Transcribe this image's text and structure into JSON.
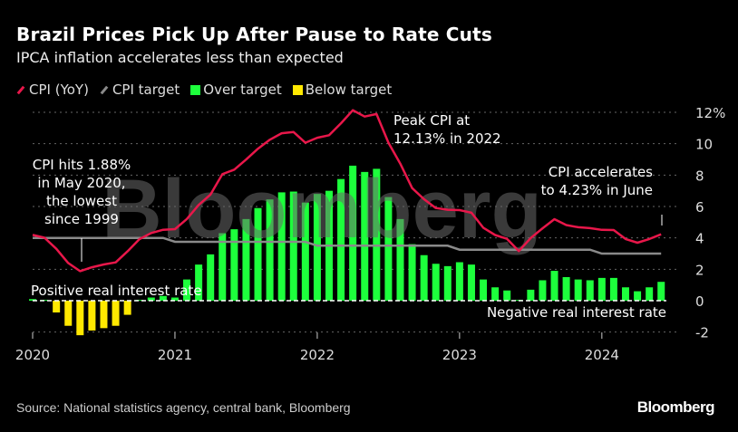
{
  "title": "Brazil Prices Pick Up After Pause to Rate Cuts",
  "subtitle": "IPCA inflation accelerates less than expected",
  "legend": [
    {
      "label": "CPI (YoY)",
      "type": "line",
      "color": "#e8174a"
    },
    {
      "label": "CPI target",
      "type": "line",
      "color": "#8a8a8a"
    },
    {
      "label": "Over target",
      "type": "box",
      "color": "#1dff3c"
    },
    {
      "label": "Below target",
      "type": "box",
      "color": "#ffe800"
    }
  ],
  "source": "Source: National statistics agency, central bank, Bloomberg",
  "logo": "Bloomberg",
  "watermark": "Bloomberg",
  "annotations": {
    "low": [
      "CPI hits 1.88%",
      "in May 2020,",
      "the lowest",
      "since 1999"
    ],
    "peak": [
      "Peak CPI at",
      "12.13% in 2022"
    ],
    "june": [
      "CPI accelerates",
      "to 4.23% in June"
    ],
    "positive": "Positive real interest rate",
    "negative": "Negative real interest rate"
  },
  "chart_data": {
    "type": "bar+line",
    "title": "Brazil Prices Pick Up After Pause to Rate Cuts",
    "start": "2020-01",
    "frequency": "monthly",
    "x_ticks": [
      "2020",
      "2021",
      "2022",
      "2023",
      "2024"
    ],
    "y_ticks": [
      "-2",
      "0",
      "2",
      "4",
      "6",
      "8",
      "10",
      "12%"
    ],
    "ylim": [
      -2,
      12
    ],
    "grid": true,
    "colors": {
      "cpi": "#e8174a",
      "target": "#8a8a8a",
      "over": "#1dff3c",
      "below": "#ffe800"
    },
    "series": [
      {
        "name": "CPI (YoY)",
        "type": "line",
        "values": [
          4.19,
          4.01,
          3.3,
          2.4,
          1.88,
          2.13,
          2.31,
          2.44,
          3.14,
          3.92,
          4.31,
          4.52,
          4.56,
          5.2,
          6.1,
          6.76,
          8.06,
          8.35,
          8.99,
          9.68,
          10.25,
          10.67,
          10.74,
          10.06,
          10.38,
          10.54,
          11.3,
          12.13,
          11.73,
          11.89,
          10.07,
          8.73,
          7.17,
          6.47,
          5.9,
          5.79,
          5.77,
          5.6,
          4.65,
          4.18,
          3.94,
          3.16,
          3.99,
          4.61,
          5.19,
          4.82,
          4.68,
          4.62,
          4.51,
          4.5,
          3.93,
          3.69,
          3.93,
          4.23
        ]
      },
      {
        "name": "CPI target",
        "type": "line",
        "values": [
          4.0,
          4.0,
          4.0,
          4.0,
          4.0,
          4.0,
          4.0,
          4.0,
          4.0,
          4.0,
          4.0,
          4.0,
          3.75,
          3.75,
          3.75,
          3.75,
          3.75,
          3.75,
          3.75,
          3.75,
          3.75,
          3.75,
          3.75,
          3.75,
          3.5,
          3.5,
          3.5,
          3.5,
          3.5,
          3.5,
          3.5,
          3.5,
          3.5,
          3.5,
          3.5,
          3.5,
          3.25,
          3.25,
          3.25,
          3.25,
          3.25,
          3.25,
          3.25,
          3.25,
          3.25,
          3.25,
          3.25,
          3.25,
          3.0,
          3.0,
          3.0,
          3.0,
          3.0,
          3.0
        ]
      },
      {
        "name": "Over target / Below target",
        "type": "bar",
        "values": [
          0.1,
          0.05,
          -0.75,
          -1.6,
          -2.2,
          -1.9,
          -1.75,
          -1.6,
          -0.9,
          0.05,
          0.2,
          0.3,
          0.2,
          1.35,
          2.3,
          2.95,
          4.3,
          4.55,
          5.2,
          5.9,
          6.45,
          6.9,
          6.95,
          6.25,
          6.8,
          7.0,
          7.75,
          8.6,
          8.2,
          8.4,
          6.6,
          5.2,
          3.6,
          2.9,
          2.35,
          2.2,
          2.45,
          2.3,
          1.35,
          0.85,
          0.65,
          0.05,
          0.7,
          1.3,
          1.9,
          1.5,
          1.35,
          1.3,
          1.45,
          1.45,
          0.85,
          0.6,
          0.85,
          1.2
        ]
      }
    ]
  }
}
